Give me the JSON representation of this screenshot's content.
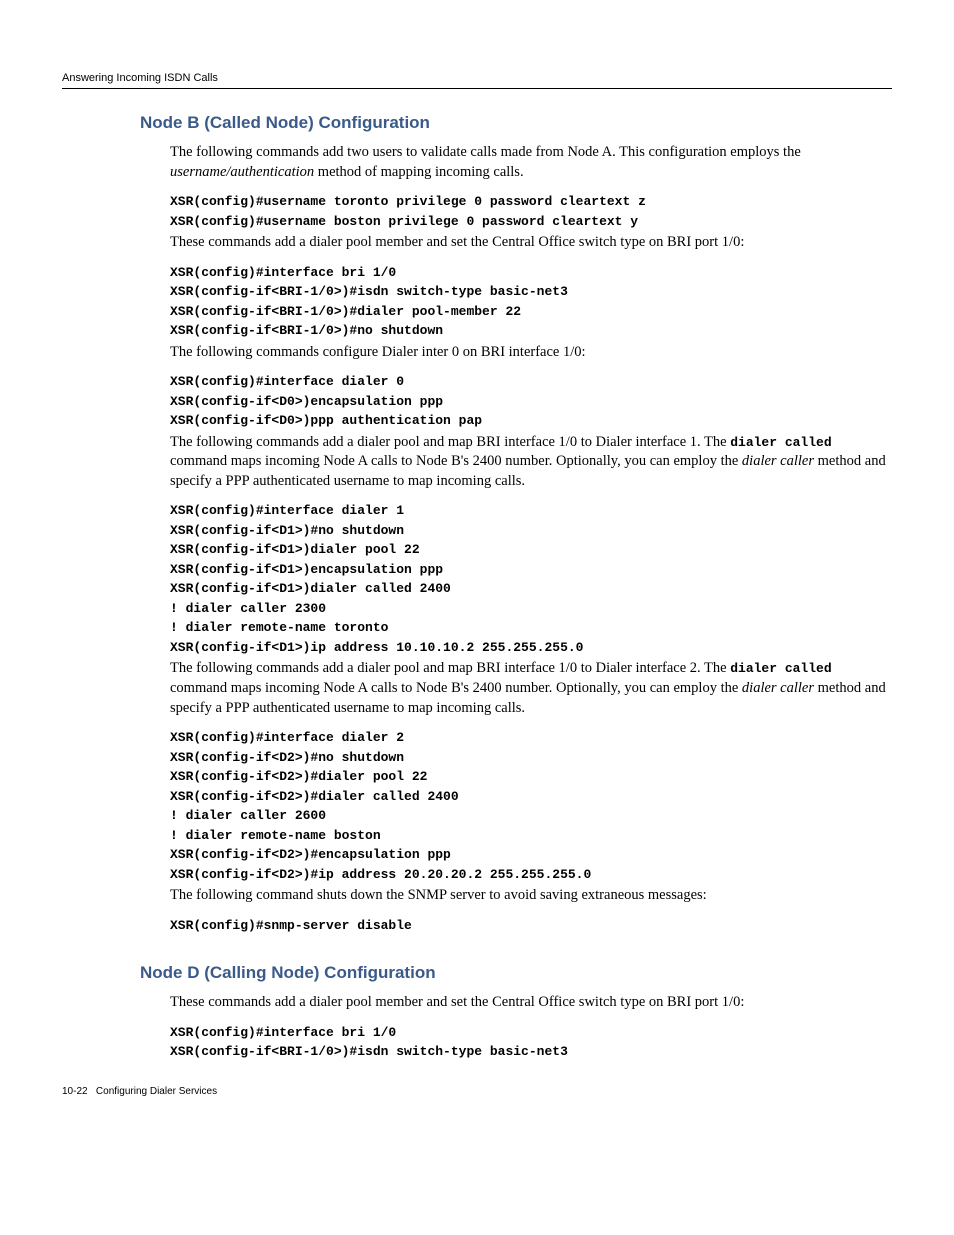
{
  "header": {
    "running": "Answering Incoming ISDN Calls"
  },
  "sectionB": {
    "title": "Node B (Called Node) Configuration",
    "intro_a": "The following commands add two users to validate calls made from Node A. This configuration employs the ",
    "intro_b_italic": "username/authentication",
    "intro_c": " method of mapping incoming calls.",
    "cmd1": "XSR(config)#username toronto privilege 0 password cleartext z\nXSR(config)#username boston privilege 0 password cleartext y",
    "para2": "These commands add a dialer pool member and set the Central Office switch type on BRI port 1/0:",
    "cmd2": "XSR(config)#interface bri 1/0\nXSR(config-if<BRI-1/0>)#isdn switch-type basic-net3\nXSR(config-if<BRI-1/0>)#dialer pool-member 22\nXSR(config-if<BRI-1/0>)#no shutdown",
    "para3": "The following commands configure Dialer inter 0 on BRI interface 1/0:",
    "cmd3": "XSR(config)#interface dialer 0\nXSR(config-if<D0>)encapsulation ppp\nXSR(config-if<D0>)ppp authentication pap",
    "para4_a": "The following commands add a dialer pool and map BRI interface 1/0 to Dialer interface 1. The ",
    "para4_mono": "dialer called",
    "para4_b": " command maps incoming Node A calls to Node B's 2400 number. Optionally, you can employ the ",
    "para4_italic": "dialer caller",
    "para4_c": " method and specify a PPP authenticated username to map incoming calls.",
    "cmd4": "XSR(config)#interface dialer 1\nXSR(config-if<D1>)#no shutdown\nXSR(config-if<D1>)dialer pool 22\nXSR(config-if<D1>)encapsulation ppp\nXSR(config-if<D1>)dialer called 2400\n! dialer caller 2300\n! dialer remote-name toronto\nXSR(config-if<D1>)ip address 10.10.10.2 255.255.255.0",
    "para5_a": "The following commands add a dialer pool and map BRI interface 1/0 to Dialer interface 2. The ",
    "para5_mono": "dialer called",
    "para5_b": " command maps incoming Node A calls to Node B's 2400 number. Optionally, you can employ the ",
    "para5_italic": "dialer caller",
    "para5_c": " method and specify a PPP authenticated username to map incoming calls.",
    "cmd5": "XSR(config)#interface dialer 2\nXSR(config-if<D2>)#no shutdown\nXSR(config-if<D2>)#dialer pool 22\nXSR(config-if<D2>)#dialer called 2400\n! dialer caller 2600\n! dialer remote-name boston\nXSR(config-if<D2>)#encapsulation ppp\nXSR(config-if<D2>)#ip address 20.20.20.2 255.255.255.0",
    "para6": "The following command shuts down the SNMP server to avoid saving extraneous messages:",
    "cmd6": "XSR(config)#snmp-server disable"
  },
  "sectionD": {
    "title": "Node D (Calling Node) Configuration",
    "intro": "These commands add a dialer pool member and set the Central Office switch type on BRI port 1/0:",
    "cmd1": "XSR(config)#interface bri 1/0\nXSR(config-if<BRI-1/0>)#isdn switch-type basic-net3"
  },
  "footer": {
    "pagelabel": "10-22",
    "chapter": "Configuring Dialer Services"
  }
}
